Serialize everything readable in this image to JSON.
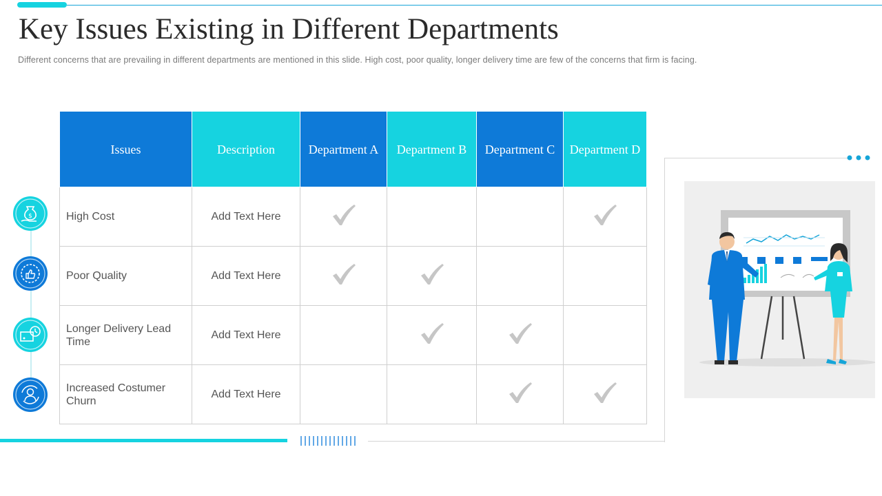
{
  "slide": {
    "title": "Key Issues Existing in Different Departments",
    "subtitle": "Different  concerns that are  prevailing  in different  departments  are  mentioned  in this slide.  High cost,  poor quality,  longer delivery  time are  few  of the concerns  that firm is facing."
  },
  "table": {
    "headers": [
      "Issues",
      "Description",
      "Department A",
      "Department B",
      "Department C",
      "Department D"
    ],
    "rows": [
      {
        "issue": "High Cost",
        "description": "Add Text Here",
        "checks": [
          true,
          false,
          false,
          true
        ],
        "icon": "money-hand-icon"
      },
      {
        "issue": "Poor Quality",
        "description": "Add Text Here",
        "checks": [
          true,
          true,
          false,
          false
        ],
        "icon": "thumbs-up-badge-icon"
      },
      {
        "issue": "Longer Delivery Lead Time",
        "description": "Add Text Here",
        "checks": [
          false,
          true,
          true,
          false
        ],
        "icon": "delivery-clock-icon"
      },
      {
        "issue": "Increased Costumer Churn",
        "description": "Add Text Here",
        "checks": [
          false,
          false,
          true,
          true
        ],
        "icon": "customer-refresh-icon"
      }
    ]
  },
  "colors": {
    "dark_blue": "#0e7ad8",
    "cyan": "#16d3e0",
    "check_gray": "#c6c6c6"
  }
}
